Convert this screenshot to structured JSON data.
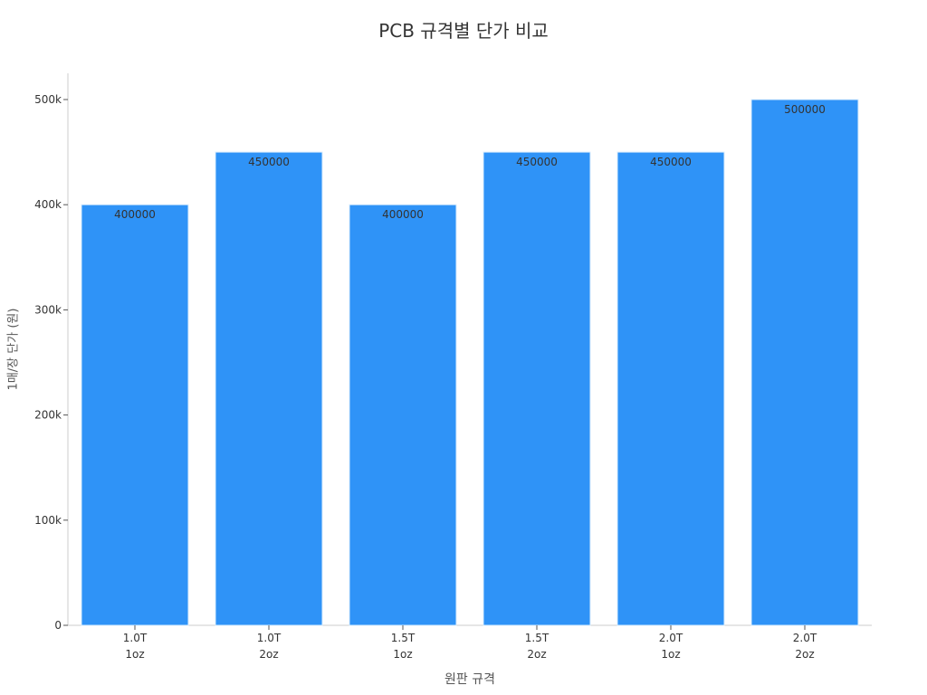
{
  "chart_data": {
    "type": "bar",
    "title": "PCB 규격별 단가 비교",
    "xlabel": "원판 규격",
    "ylabel": "1매/장 단가 (원)",
    "categories": [
      [
        "1.0T",
        "1oz"
      ],
      [
        "1.0T",
        "2oz"
      ],
      [
        "1.5T",
        "1oz"
      ],
      [
        "1.5T",
        "2oz"
      ],
      [
        "2.0T",
        "1oz"
      ],
      [
        "2.0T",
        "2oz"
      ]
    ],
    "values": [
      400000,
      450000,
      400000,
      450000,
      450000,
      500000
    ],
    "data_labels": [
      "400000",
      "450000",
      "400000",
      "450000",
      "450000",
      "500000"
    ],
    "ylim": [
      0,
      525000
    ],
    "yticks": [
      0,
      100000,
      200000,
      300000,
      400000,
      500000
    ],
    "ytick_labels": [
      "0",
      "100k",
      "200k",
      "300k",
      "400k",
      "500k"
    ],
    "bar_color": "#2f93f7",
    "grid": false
  }
}
